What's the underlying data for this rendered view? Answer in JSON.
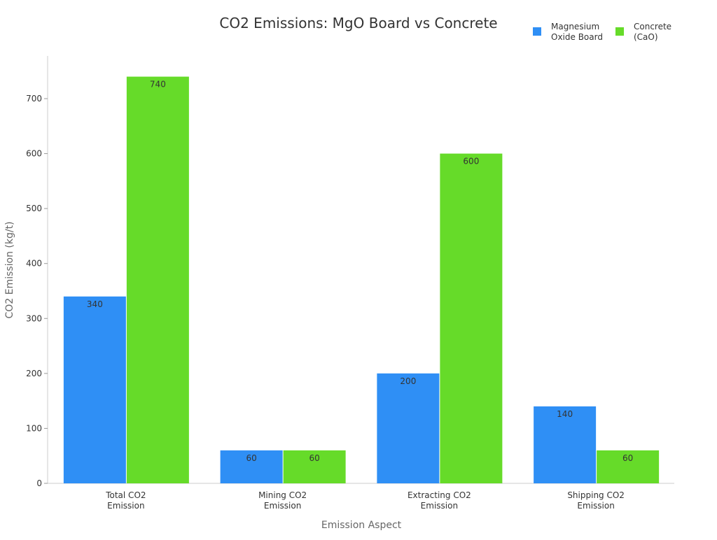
{
  "chart_data": {
    "type": "bar",
    "title": "CO2 Emissions: MgO Board vs Concrete",
    "xlabel": "Emission Aspect",
    "ylabel": "CO2 Emission (kg/t)",
    "categories": [
      [
        "Total CO2",
        "Emission"
      ],
      [
        "Mining CO2",
        "Emission"
      ],
      [
        "Extracting CO2",
        "Emission"
      ],
      [
        "Shipping CO2",
        "Emission"
      ]
    ],
    "series": [
      {
        "name": [
          "Magnesium",
          "Oxide Board"
        ],
        "color": "#2f8ff5",
        "values": [
          340,
          60,
          200,
          140
        ]
      },
      {
        "name": [
          "Concrete",
          "(CaO)"
        ],
        "color": "#66db29",
        "values": [
          740,
          60,
          600,
          60
        ]
      }
    ],
    "ylim": [
      0,
      775
    ],
    "yticks": [
      0,
      100,
      200,
      300,
      400,
      500,
      600,
      700
    ],
    "grid": false,
    "legend": "top-right",
    "data_labels": true
  }
}
